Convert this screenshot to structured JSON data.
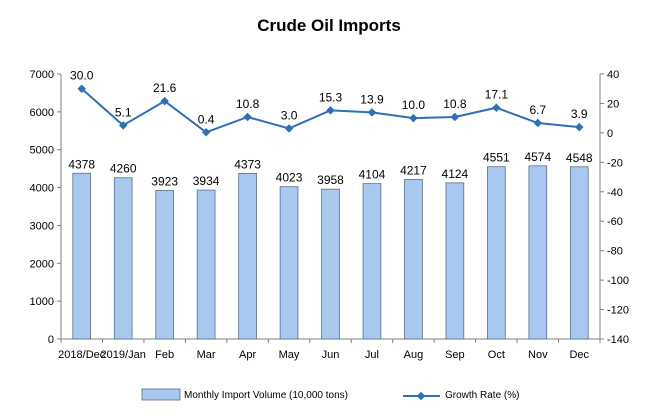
{
  "chart_data": {
    "type": "bar",
    "title": "Crude Oil Imports",
    "categories": [
      "2018/Dec",
      "2019/Jan",
      "Feb",
      "Mar",
      "Apr",
      "May",
      "Jun",
      "Jul",
      "Aug",
      "Sep",
      "Oct",
      "Nov",
      "Dec"
    ],
    "series": [
      {
        "name": "Monthly Import Volume (10,000 tons)",
        "type": "bar",
        "axis": "left",
        "color": "#a9c8f0",
        "values": [
          4378,
          4260,
          3923,
          3934,
          4373,
          4023,
          3958,
          4104,
          4217,
          4124,
          4551,
          4574,
          4548
        ]
      },
      {
        "name": "Growth Rate (%)",
        "type": "line",
        "axis": "right",
        "color": "#2e6fb7",
        "values": [
          30.0,
          5.1,
          21.6,
          0.4,
          10.8,
          3.0,
          15.3,
          13.9,
          10.0,
          10.8,
          17.1,
          6.7,
          3.9
        ],
        "labels": [
          "30.0",
          "5.1",
          "21.6",
          "0.4",
          "10.8",
          "3.0",
          "15.3",
          "13.9",
          "10.0",
          "10.8",
          "17.1",
          "6.7",
          "3.9"
        ]
      }
    ],
    "y_left": {
      "min": 0,
      "max": 7000,
      "ticks": [
        "0",
        "1000",
        "2000",
        "3000",
        "4000",
        "5000",
        "6000",
        "7000"
      ]
    },
    "y_right": {
      "min": -140,
      "max": 40,
      "ticks": [
        "-140",
        "-120",
        "-100",
        "-80",
        "-60",
        "-40",
        "-20",
        "0",
        "20",
        "40"
      ]
    },
    "grid": false,
    "legend_position": "bottom"
  }
}
